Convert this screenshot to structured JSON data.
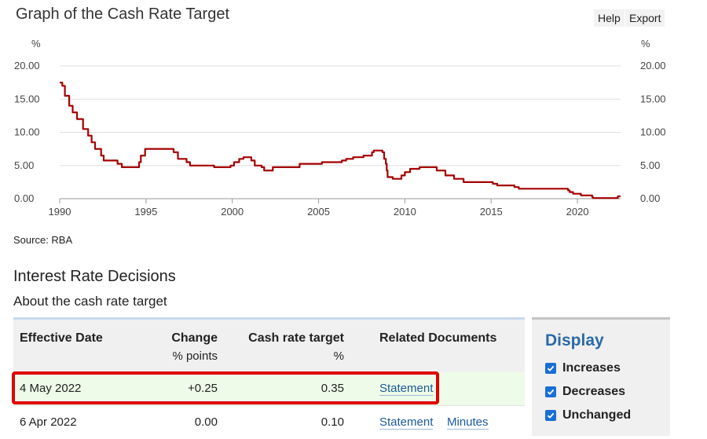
{
  "header": {
    "title": "Graph of the Cash Rate Target",
    "help_label": "Help",
    "export_label": "Export"
  },
  "chart_data": {
    "type": "line",
    "title": "Graph of the Cash Rate Target",
    "ylabel": "%",
    "ylabel_right": "%",
    "xlim": [
      1990,
      2022.5
    ],
    "ylim": [
      0,
      20
    ],
    "y_ticks": [
      "0.00",
      "5.00",
      "10.00",
      "15.00",
      "20.00"
    ],
    "x_ticks": [
      "1990",
      "1995",
      "2000",
      "2005",
      "2010",
      "2015",
      "2020"
    ],
    "grid": true,
    "line_color": "#a50000",
    "series": [
      {
        "step": true,
        "points": [
          [
            1990.0,
            17.5
          ],
          [
            1990.15,
            17.0
          ],
          [
            1990.3,
            15.5
          ],
          [
            1990.55,
            14.0
          ],
          [
            1990.75,
            13.0
          ],
          [
            1991.0,
            12.0
          ],
          [
            1991.35,
            10.5
          ],
          [
            1991.65,
            9.5
          ],
          [
            1991.85,
            8.5
          ],
          [
            1992.05,
            7.5
          ],
          [
            1992.4,
            6.5
          ],
          [
            1992.55,
            5.75
          ],
          [
            1993.35,
            5.25
          ],
          [
            1993.6,
            4.75
          ],
          [
            1994.6,
            5.5
          ],
          [
            1994.7,
            6.5
          ],
          [
            1994.95,
            7.5
          ],
          [
            1996.6,
            7.0
          ],
          [
            1996.85,
            6.0
          ],
          [
            1997.35,
            5.5
          ],
          [
            1997.55,
            5.0
          ],
          [
            1998.95,
            4.75
          ],
          [
            1999.9,
            5.0
          ],
          [
            2000.1,
            5.5
          ],
          [
            2000.4,
            6.0
          ],
          [
            2000.65,
            6.25
          ],
          [
            2001.1,
            5.75
          ],
          [
            2001.3,
            5.0
          ],
          [
            2001.7,
            4.75
          ],
          [
            2001.85,
            4.25
          ],
          [
            2002.35,
            4.75
          ],
          [
            2003.9,
            5.25
          ],
          [
            2005.2,
            5.5
          ],
          [
            2006.35,
            5.75
          ],
          [
            2006.6,
            6.0
          ],
          [
            2007.0,
            6.25
          ],
          [
            2007.6,
            6.5
          ],
          [
            2008.1,
            7.0
          ],
          [
            2008.2,
            7.25
          ],
          [
            2008.7,
            7.0
          ],
          [
            2008.8,
            6.0
          ],
          [
            2008.9,
            5.25
          ],
          [
            2008.95,
            4.25
          ],
          [
            2009.0,
            3.25
          ],
          [
            2009.3,
            3.0
          ],
          [
            2009.8,
            3.5
          ],
          [
            2010.0,
            4.0
          ],
          [
            2010.3,
            4.5
          ],
          [
            2010.85,
            4.75
          ],
          [
            2011.85,
            4.25
          ],
          [
            2012.35,
            3.5
          ],
          [
            2012.85,
            3.0
          ],
          [
            2013.4,
            2.5
          ],
          [
            2015.1,
            2.25
          ],
          [
            2015.35,
            2.0
          ],
          [
            2016.35,
            1.75
          ],
          [
            2016.6,
            1.5
          ],
          [
            2019.45,
            1.25
          ],
          [
            2019.55,
            1.0
          ],
          [
            2019.75,
            0.75
          ],
          [
            2020.2,
            0.5
          ],
          [
            2020.85,
            0.25
          ],
          [
            2020.9,
            0.1
          ],
          [
            2022.34,
            0.35
          ]
        ]
      }
    ]
  },
  "source": "Source: RBA",
  "section": {
    "title": "Interest Rate Decisions",
    "subtitle": "About the cash rate target"
  },
  "table": {
    "headers": {
      "date": "Effective Date",
      "change": "Change",
      "change_unit": "% points",
      "rate": "Cash rate target",
      "rate_unit": "%",
      "docs": "Related Documents"
    },
    "rows": [
      {
        "date": "4 May 2022",
        "change": "+0.25",
        "rate": "0.35",
        "doc1": "Statement",
        "doc2": ""
      },
      {
        "date": "6 Apr 2022",
        "change": "0.00",
        "rate": "0.10",
        "doc1": "Statement",
        "doc2": "Minutes"
      }
    ]
  },
  "display": {
    "title": "Display",
    "options": [
      {
        "label": "Increases",
        "checked": true
      },
      {
        "label": "Decreases",
        "checked": true
      },
      {
        "label": "Unchanged",
        "checked": true
      }
    ]
  }
}
